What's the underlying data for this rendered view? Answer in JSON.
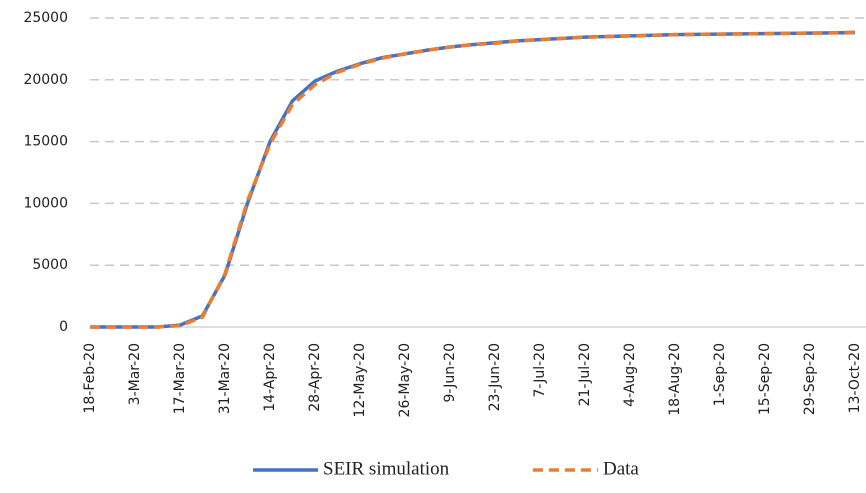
{
  "chart_data": {
    "type": "line",
    "categories": [
      "18-Feb-20",
      null,
      "3-Mar-20",
      null,
      "17-Mar-20",
      null,
      "31-Mar-20",
      null,
      "14-Apr-20",
      null,
      "28-Apr-20",
      null,
      "12-May-20",
      null,
      "26-May-20",
      null,
      "9-Jun-20",
      null,
      "23-Jun-20",
      null,
      "7-Jul-20",
      null,
      "21-Jul-20",
      null,
      "4-Aug-20",
      null,
      "18-Aug-20",
      null,
      "1-Sep-20",
      null,
      "15-Sep-20",
      null,
      "29-Sep-20",
      null,
      "13-Oct-20"
    ],
    "series": [
      {
        "name": "SEIR simulation",
        "color": "#4472c4",
        "dashed": false,
        "values": [
          0,
          0,
          0,
          0,
          150,
          900,
          4200,
          10000,
          15000,
          18300,
          19900,
          20700,
          21300,
          21800,
          22100,
          22400,
          22650,
          22850,
          23000,
          23150,
          23250,
          23350,
          23450,
          23500,
          23550,
          23600,
          23650,
          23680,
          23700,
          23720,
          23740,
          23760,
          23780,
          23800,
          23820
        ]
      },
      {
        "name": "Data",
        "color": "#ed7d31",
        "dashed": true,
        "values": [
          0,
          0,
          0,
          0,
          100,
          800,
          4300,
          10200,
          14800,
          18000,
          19600,
          20600,
          21250,
          21750,
          22100,
          22400,
          22650,
          22850,
          22950,
          23150,
          23250,
          23350,
          23450,
          23500,
          23550,
          23600,
          23650,
          23680,
          23700,
          23720,
          23740,
          23760,
          23780,
          23800,
          23850
        ]
      }
    ],
    "ylim": [
      0,
      25000
    ],
    "yticks": [
      0,
      5000,
      10000,
      15000,
      20000,
      25000
    ],
    "grid": true,
    "legend_position": "bottom"
  }
}
